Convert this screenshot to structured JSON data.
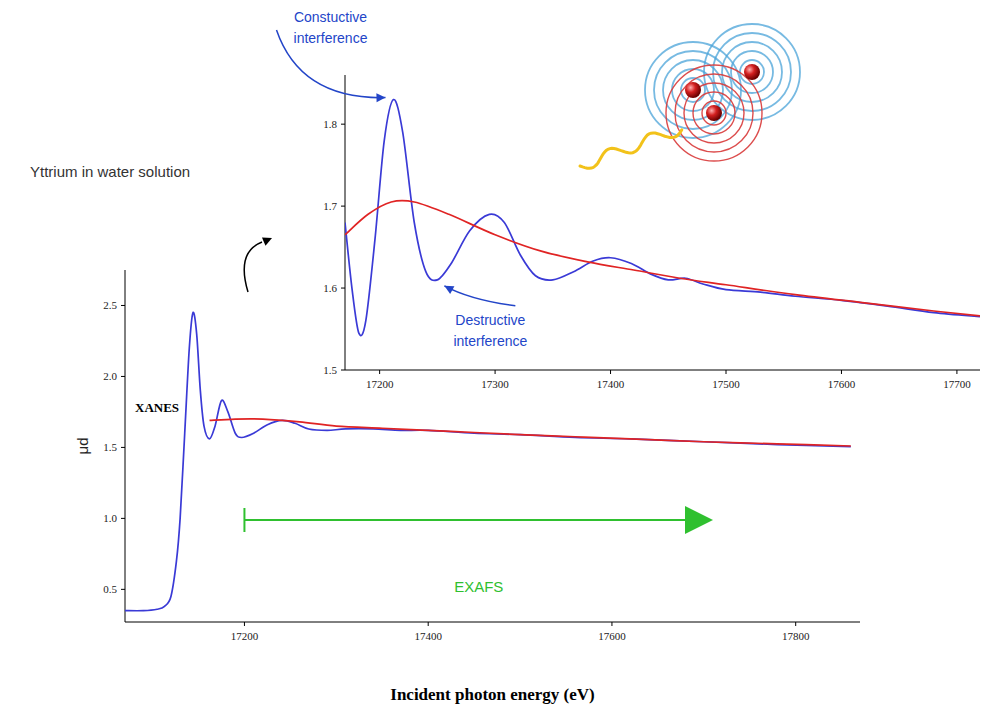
{
  "chart_data": [
    {
      "type": "line",
      "title": "Yttrium in water solution",
      "x_label": "Incident photon energy (eV)",
      "y_label": "μd",
      "xlim": [
        17070,
        17870
      ],
      "ylim": [
        0.27,
        2.75
      ],
      "xticks": [
        17200,
        17400,
        17600,
        17800
      ],
      "yticks": [
        0.5,
        {
          "value": 1,
          "label": "1.0"
        },
        1.5,
        {
          "value": 2,
          "label": "2.0"
        },
        2.5
      ],
      "series": [
        {
          "color": "#3a3ad6",
          "line_style": "solid",
          "x": [
            17070,
            17090,
            17105,
            17113,
            17120,
            17126,
            17130,
            17135,
            17140,
            17144,
            17148,
            17152,
            17156,
            17162,
            17168,
            17175,
            17182,
            17190,
            17197,
            17210,
            17225,
            17241,
            17255,
            17270,
            17290,
            17310,
            17340,
            17370,
            17400,
            17450,
            17500,
            17560,
            17620,
            17700,
            17780,
            17860
          ],
          "values": [
            0.35,
            0.35,
            0.36,
            0.38,
            0.45,
            0.7,
            1,
            1.6,
            2.2,
            2.45,
            2.3,
            1.9,
            1.65,
            1.56,
            1.65,
            1.83,
            1.75,
            1.6,
            1.57,
            1.6,
            1.66,
            1.69,
            1.67,
            1.63,
            1.62,
            1.63,
            1.63,
            1.62,
            1.62,
            1.6,
            1.59,
            1.57,
            1.56,
            1.54,
            1.52,
            1.505
          ]
        },
        {
          "color": "#e02424",
          "line_style": "solid",
          "x": [
            17162,
            17190,
            17220,
            17260,
            17300,
            17350,
            17400,
            17450,
            17500,
            17560,
            17620,
            17700,
            17780,
            17860
          ],
          "values": [
            1.69,
            1.7,
            1.7,
            1.68,
            1.65,
            1.635,
            1.62,
            1.605,
            1.59,
            1.575,
            1.56,
            1.54,
            1.525,
            1.51
          ]
        }
      ],
      "annotations": [
        {
          "text": "XANES"
        },
        {
          "text": "EXAFS",
          "x": [
            17200,
            17710
          ]
        }
      ]
    },
    {
      "type": "line",
      "xlim": [
        17170,
        17720
      ],
      "ylim": [
        1.5,
        1.86
      ],
      "xticks": [
        17200,
        17300,
        17400,
        17500,
        17600,
        17700
      ],
      "yticks": [
        1.5,
        1.6,
        1.7,
        1.8
      ],
      "series": [
        {
          "color": "#3a3ad6",
          "line_style": "solid",
          "x": [
            17170,
            17176,
            17182,
            17188,
            17196,
            17204,
            17212,
            17220,
            17230,
            17240,
            17250,
            17262,
            17278,
            17295,
            17308,
            17322,
            17335,
            17350,
            17368,
            17385,
            17400,
            17418,
            17435,
            17450,
            17465,
            17480,
            17500,
            17530,
            17560,
            17600,
            17640,
            17680,
            17720
          ],
          "values": [
            1.68,
            1.6,
            1.545,
            1.56,
            1.66,
            1.78,
            1.83,
            1.79,
            1.68,
            1.62,
            1.61,
            1.63,
            1.67,
            1.69,
            1.68,
            1.64,
            1.615,
            1.61,
            1.62,
            1.633,
            1.637,
            1.63,
            1.617,
            1.61,
            1.612,
            1.605,
            1.598,
            1.595,
            1.59,
            1.585,
            1.578,
            1.57,
            1.565
          ]
        },
        {
          "color": "#e02424",
          "line_style": "solid",
          "x": [
            17170,
            17190,
            17210,
            17230,
            17260,
            17300,
            17340,
            17380,
            17420,
            17460,
            17500,
            17560,
            17620,
            17680,
            17720
          ],
          "values": [
            1.665,
            1.69,
            1.705,
            1.705,
            1.69,
            1.665,
            1.645,
            1.632,
            1.622,
            1.612,
            1.604,
            1.592,
            1.582,
            1.572,
            1.566
          ]
        }
      ],
      "annotations": [
        {
          "text": "Constuctive interference",
          "x": 17212,
          "y": 1.83
        },
        {
          "text": "Destructive interference",
          "x": 17250,
          "y": 1.61
        }
      ]
    }
  ]
}
